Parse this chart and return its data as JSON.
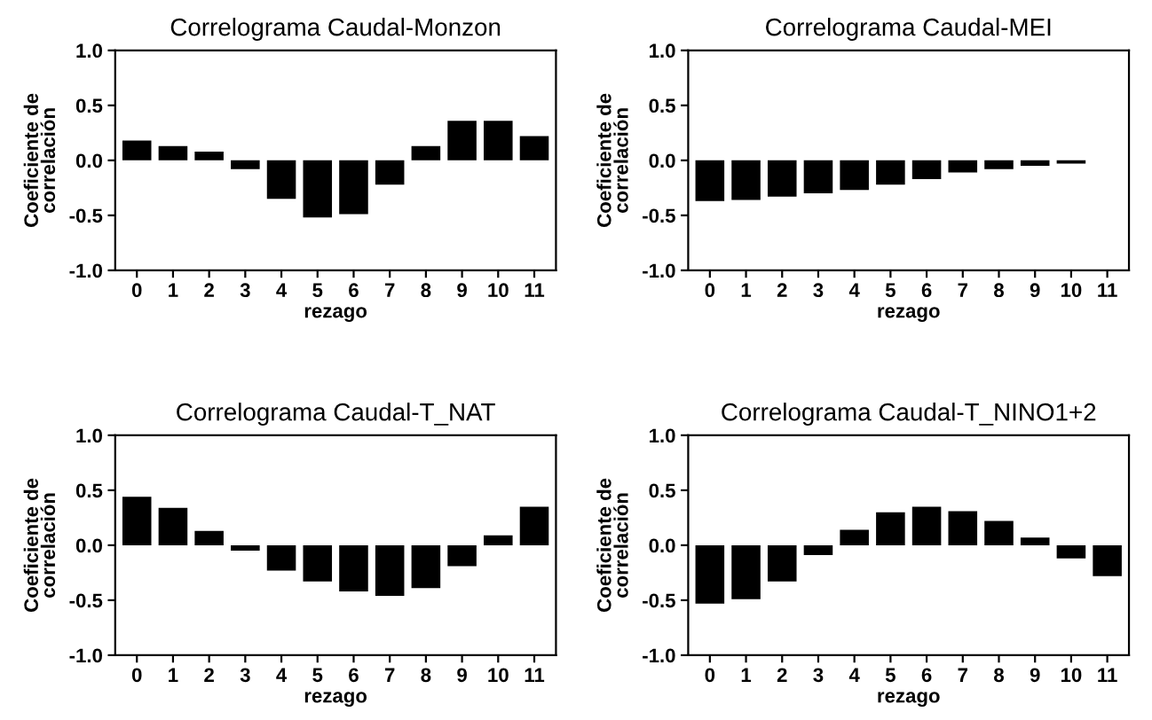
{
  "chart_data": [
    {
      "type": "bar",
      "title": "Correlograma Caudal-Monzon",
      "xlabel": "rezago",
      "ylabel": "Coeficiente de\ncorrelación",
      "categories": [
        "0",
        "1",
        "2",
        "3",
        "4",
        "5",
        "6",
        "7",
        "8",
        "9",
        "10",
        "11"
      ],
      "color": "#000000",
      "values": [
        0.18,
        0.13,
        0.08,
        -0.08,
        -0.35,
        -0.52,
        -0.49,
        -0.22,
        0.13,
        0.36,
        0.36,
        0.22
      ],
      "ylim": [
        -1.0,
        1.0
      ],
      "yticks": [
        {
          "value": -1.0,
          "label": "-1.0"
        },
        {
          "value": -0.5,
          "label": "-0.5"
        },
        {
          "value": 0.0,
          "label": "0.0"
        },
        {
          "value": 0.5,
          "label": "0.5"
        },
        {
          "value": 1.0,
          "label": "1.0"
        }
      ],
      "grid": false,
      "legend": false
    },
    {
      "type": "bar",
      "title": "Correlograma Caudal-MEI",
      "xlabel": "rezago",
      "ylabel": "Coeficiente de\ncorrelación",
      "categories": [
        "0",
        "1",
        "2",
        "3",
        "4",
        "5",
        "6",
        "7",
        "8",
        "9",
        "10",
        "11"
      ],
      "color": "#000000",
      "values": [
        -0.37,
        -0.36,
        -0.33,
        -0.3,
        -0.27,
        -0.22,
        -0.17,
        -0.11,
        -0.08,
        -0.05,
        -0.03,
        null
      ],
      "ylim": [
        -1.0,
        1.0
      ],
      "yticks": [
        {
          "value": -1.0,
          "label": "-1.0"
        },
        {
          "value": -0.5,
          "label": "-0.5"
        },
        {
          "value": 0.0,
          "label": "0.0"
        },
        {
          "value": 0.5,
          "label": "0.5"
        },
        {
          "value": 1.0,
          "label": "1.0"
        }
      ],
      "grid": false,
      "legend": false
    },
    {
      "type": "bar",
      "title": "Correlograma Caudal-T_NAT",
      "xlabel": "rezago",
      "ylabel": "Coeficiente de\ncorrelación",
      "categories": [
        "0",
        "1",
        "2",
        "3",
        "4",
        "5",
        "6",
        "7",
        "8",
        "9",
        "10",
        "11"
      ],
      "color": "#000000",
      "values": [
        0.44,
        0.34,
        0.13,
        -0.05,
        -0.23,
        -0.33,
        -0.42,
        -0.46,
        -0.39,
        -0.19,
        0.09,
        0.35
      ],
      "ylim": [
        -1.0,
        1.0
      ],
      "yticks": [
        {
          "value": -1.0,
          "label": "-1.0"
        },
        {
          "value": -0.5,
          "label": "-0.5"
        },
        {
          "value": 0.0,
          "label": "0.0"
        },
        {
          "value": 0.5,
          "label": "0.5"
        },
        {
          "value": 1.0,
          "label": "1.0"
        }
      ],
      "grid": false,
      "legend": false
    },
    {
      "type": "bar",
      "title": "Correlograma Caudal-T_NINO1+2",
      "xlabel": "rezago",
      "ylabel": "Coeficiente de\ncorrelación",
      "categories": [
        "0",
        "1",
        "2",
        "3",
        "4",
        "5",
        "6",
        "7",
        "8",
        "9",
        "10",
        "11"
      ],
      "color": "#000000",
      "values": [
        -0.53,
        -0.49,
        -0.33,
        -0.09,
        0.14,
        0.3,
        0.35,
        0.31,
        0.22,
        0.07,
        -0.12,
        -0.28
      ],
      "ylim": [
        -1.0,
        1.0
      ],
      "yticks": [
        {
          "value": -1.0,
          "label": "-1.0"
        },
        {
          "value": -0.5,
          "label": "-0.5"
        },
        {
          "value": 0.0,
          "label": "0.0"
        },
        {
          "value": 0.5,
          "label": "0.5"
        },
        {
          "value": 1.0,
          "label": "1.0"
        }
      ],
      "grid": false,
      "legend": false
    }
  ]
}
